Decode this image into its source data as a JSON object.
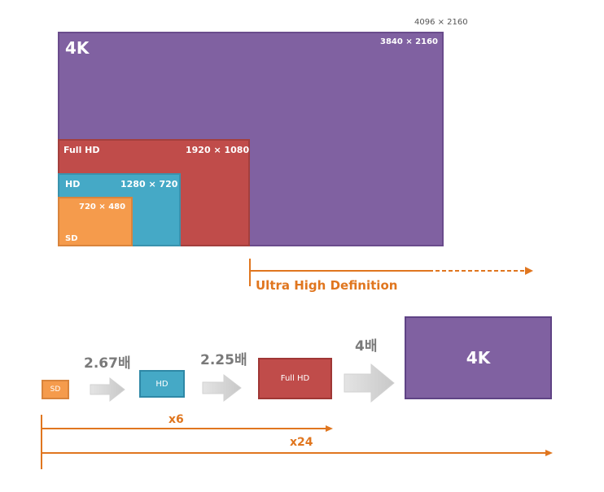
{
  "resolutions": {
    "dci_4k": "4096 × 2160",
    "uhd_4k": {
      "name": "4K",
      "dims": "3840 × 2160",
      "color": "#8061a1"
    },
    "full_hd": {
      "name": "Full HD",
      "dims": "1920 × 1080",
      "color": "#c04c4a"
    },
    "hd": {
      "name": "HD",
      "dims": "1280 × 720",
      "color": "#45a9c6"
    },
    "sd": {
      "name": "SD",
      "dims": "720 × 480",
      "color": "#f59b4c"
    }
  },
  "uhd_label": "Ultra High Definition",
  "accent_color": "#e0761f",
  "scaling": {
    "boxes": {
      "sd": "SD",
      "hd": "HD",
      "full_hd": "Full HD",
      "uhd_4k": "4K"
    },
    "multipliers": {
      "sd_to_hd": "2.67배",
      "hd_to_fhd": "2.25배",
      "fhd_to_4k": "4배"
    },
    "totals": {
      "sd_to_fhd": "x6",
      "sd_to_4k": "x24"
    }
  }
}
